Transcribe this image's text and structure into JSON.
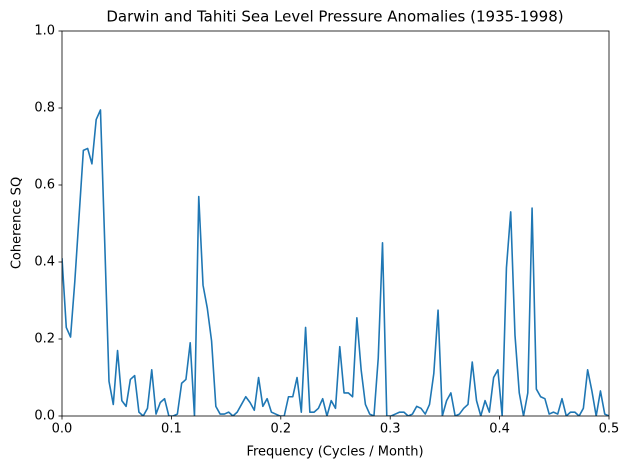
{
  "chart_data": {
    "type": "line",
    "title": "Darwin and Tahiti Sea Level Pressure Anomalies (1935-1998)",
    "xlabel": "Frequency (Cycles / Month)",
    "ylabel": "Coherence SQ",
    "color": "#1f77b4",
    "x": [
      0,
      0.00390625,
      0.0078125,
      0.01171875,
      0.015625,
      0.01953125,
      0.0234375,
      0.02734375,
      0.03125,
      0.03515625,
      0.0390625,
      0.04296875,
      0.046875,
      0.05078125,
      0.0546875,
      0.05859375,
      0.0625,
      0.06640625,
      0.0703125,
      0.07421875,
      0.078125,
      0.08203125,
      0.0859375,
      0.08984375,
      0.09375,
      0.09765625,
      0.1015625,
      0.10546875,
      0.109375,
      0.11328125,
      0.1171875,
      0.12109375,
      0.125,
      0.12890625,
      0.1328125,
      0.13671875,
      0.140625,
      0.14453125,
      0.1484375,
      0.15234375,
      0.15625,
      0.16015625,
      0.1640625,
      0.16796875,
      0.171875,
      0.17578125,
      0.1796875,
      0.18359375,
      0.1875,
      0.19140625,
      0.1953125,
      0.19921875,
      0.203125,
      0.20703125,
      0.2109375,
      0.21484375,
      0.21875,
      0.22265625,
      0.2265625,
      0.23046875,
      0.234375,
      0.23828125,
      0.2421875,
      0.24609375,
      0.25,
      0.25390625,
      0.2578125,
      0.26171875,
      0.265625,
      0.26953125,
      0.2734375,
      0.27734375,
      0.28125,
      0.28515625,
      0.2890625,
      0.29296875,
      0.296875,
      0.30078125,
      0.3046875,
      0.30859375,
      0.3125,
      0.31640625,
      0.3203125,
      0.32421875,
      0.328125,
      0.33203125,
      0.3359375,
      0.33984375,
      0.34375,
      0.34765625,
      0.3515625,
      0.35546875,
      0.359375,
      0.36328125,
      0.3671875,
      0.37109375,
      0.375,
      0.37890625,
      0.3828125,
      0.38671875,
      0.390625,
      0.39453125,
      0.3984375,
      0.40234375,
      0.40625,
      0.41015625,
      0.4140625,
      0.41796875,
      0.421875,
      0.42578125,
      0.4296875,
      0.43359375,
      0.4375,
      0.44140625,
      0.4453125,
      0.44921875,
      0.453125,
      0.45703125,
      0.4609375,
      0.46484375,
      0.46875,
      0.47265625,
      0.4765625,
      0.48046875,
      0.484375,
      0.48828125,
      0.4921875,
      0.49609375,
      0.5
    ],
    "values": [
      0.41,
      0.23,
      0.205,
      0.35,
      0.52,
      0.69,
      0.695,
      0.655,
      0.77,
      0.795,
      0.45,
      0.09,
      0.03,
      0.17,
      0.04,
      0.025,
      0.095,
      0.105,
      0.01,
      0.0,
      0.02,
      0.12,
      0.005,
      0.035,
      0.045,
      0.0,
      0.0,
      0.005,
      0.085,
      0.095,
      0.19,
      0.0,
      0.57,
      0.34,
      0.28,
      0.195,
      0.025,
      0.005,
      0.005,
      0.01,
      0.0,
      0.01,
      0.03,
      0.05,
      0.035,
      0.015,
      0.1,
      0.025,
      0.045,
      0.01,
      0.005,
      0.0,
      0.0,
      0.05,
      0.05,
      0.1,
      0.01,
      0.23,
      0.01,
      0.01,
      0.02,
      0.045,
      0.0,
      0.04,
      0.02,
      0.18,
      0.06,
      0.06,
      0.05,
      0.255,
      0.12,
      0.03,
      0.005,
      0.0,
      0.15,
      0.45,
      0.0,
      0.0,
      0.005,
      0.01,
      0.01,
      0.0,
      0.005,
      0.025,
      0.02,
      0.005,
      0.03,
      0.11,
      0.275,
      0.0,
      0.04,
      0.06,
      0.0,
      0.005,
      0.02,
      0.03,
      0.14,
      0.04,
      0.0,
      0.04,
      0.01,
      0.1,
      0.12,
      0.0,
      0.385,
      0.53,
      0.21,
      0.06,
      0.0,
      0.06,
      0.54,
      0.07,
      0.05,
      0.045,
      0.005,
      0.01,
      0.005,
      0.045,
      0.0,
      0.01,
      0.01,
      0.0,
      0.02,
      0.12,
      0.065,
      0.0,
      0.065,
      0.005,
      0.0
    ],
    "xlim": [
      0,
      0.5
    ],
    "ylim": [
      0,
      1
    ],
    "xticks": [
      {
        "value": 0,
        "label": "0.0"
      },
      0.1,
      0.2,
      0.3,
      0.4,
      0.5
    ],
    "yticks": [
      {
        "value": 0,
        "label": "0.0"
      },
      0.2,
      0.4,
      0.6,
      0.8,
      {
        "value": 1,
        "label": "1.0"
      }
    ]
  }
}
